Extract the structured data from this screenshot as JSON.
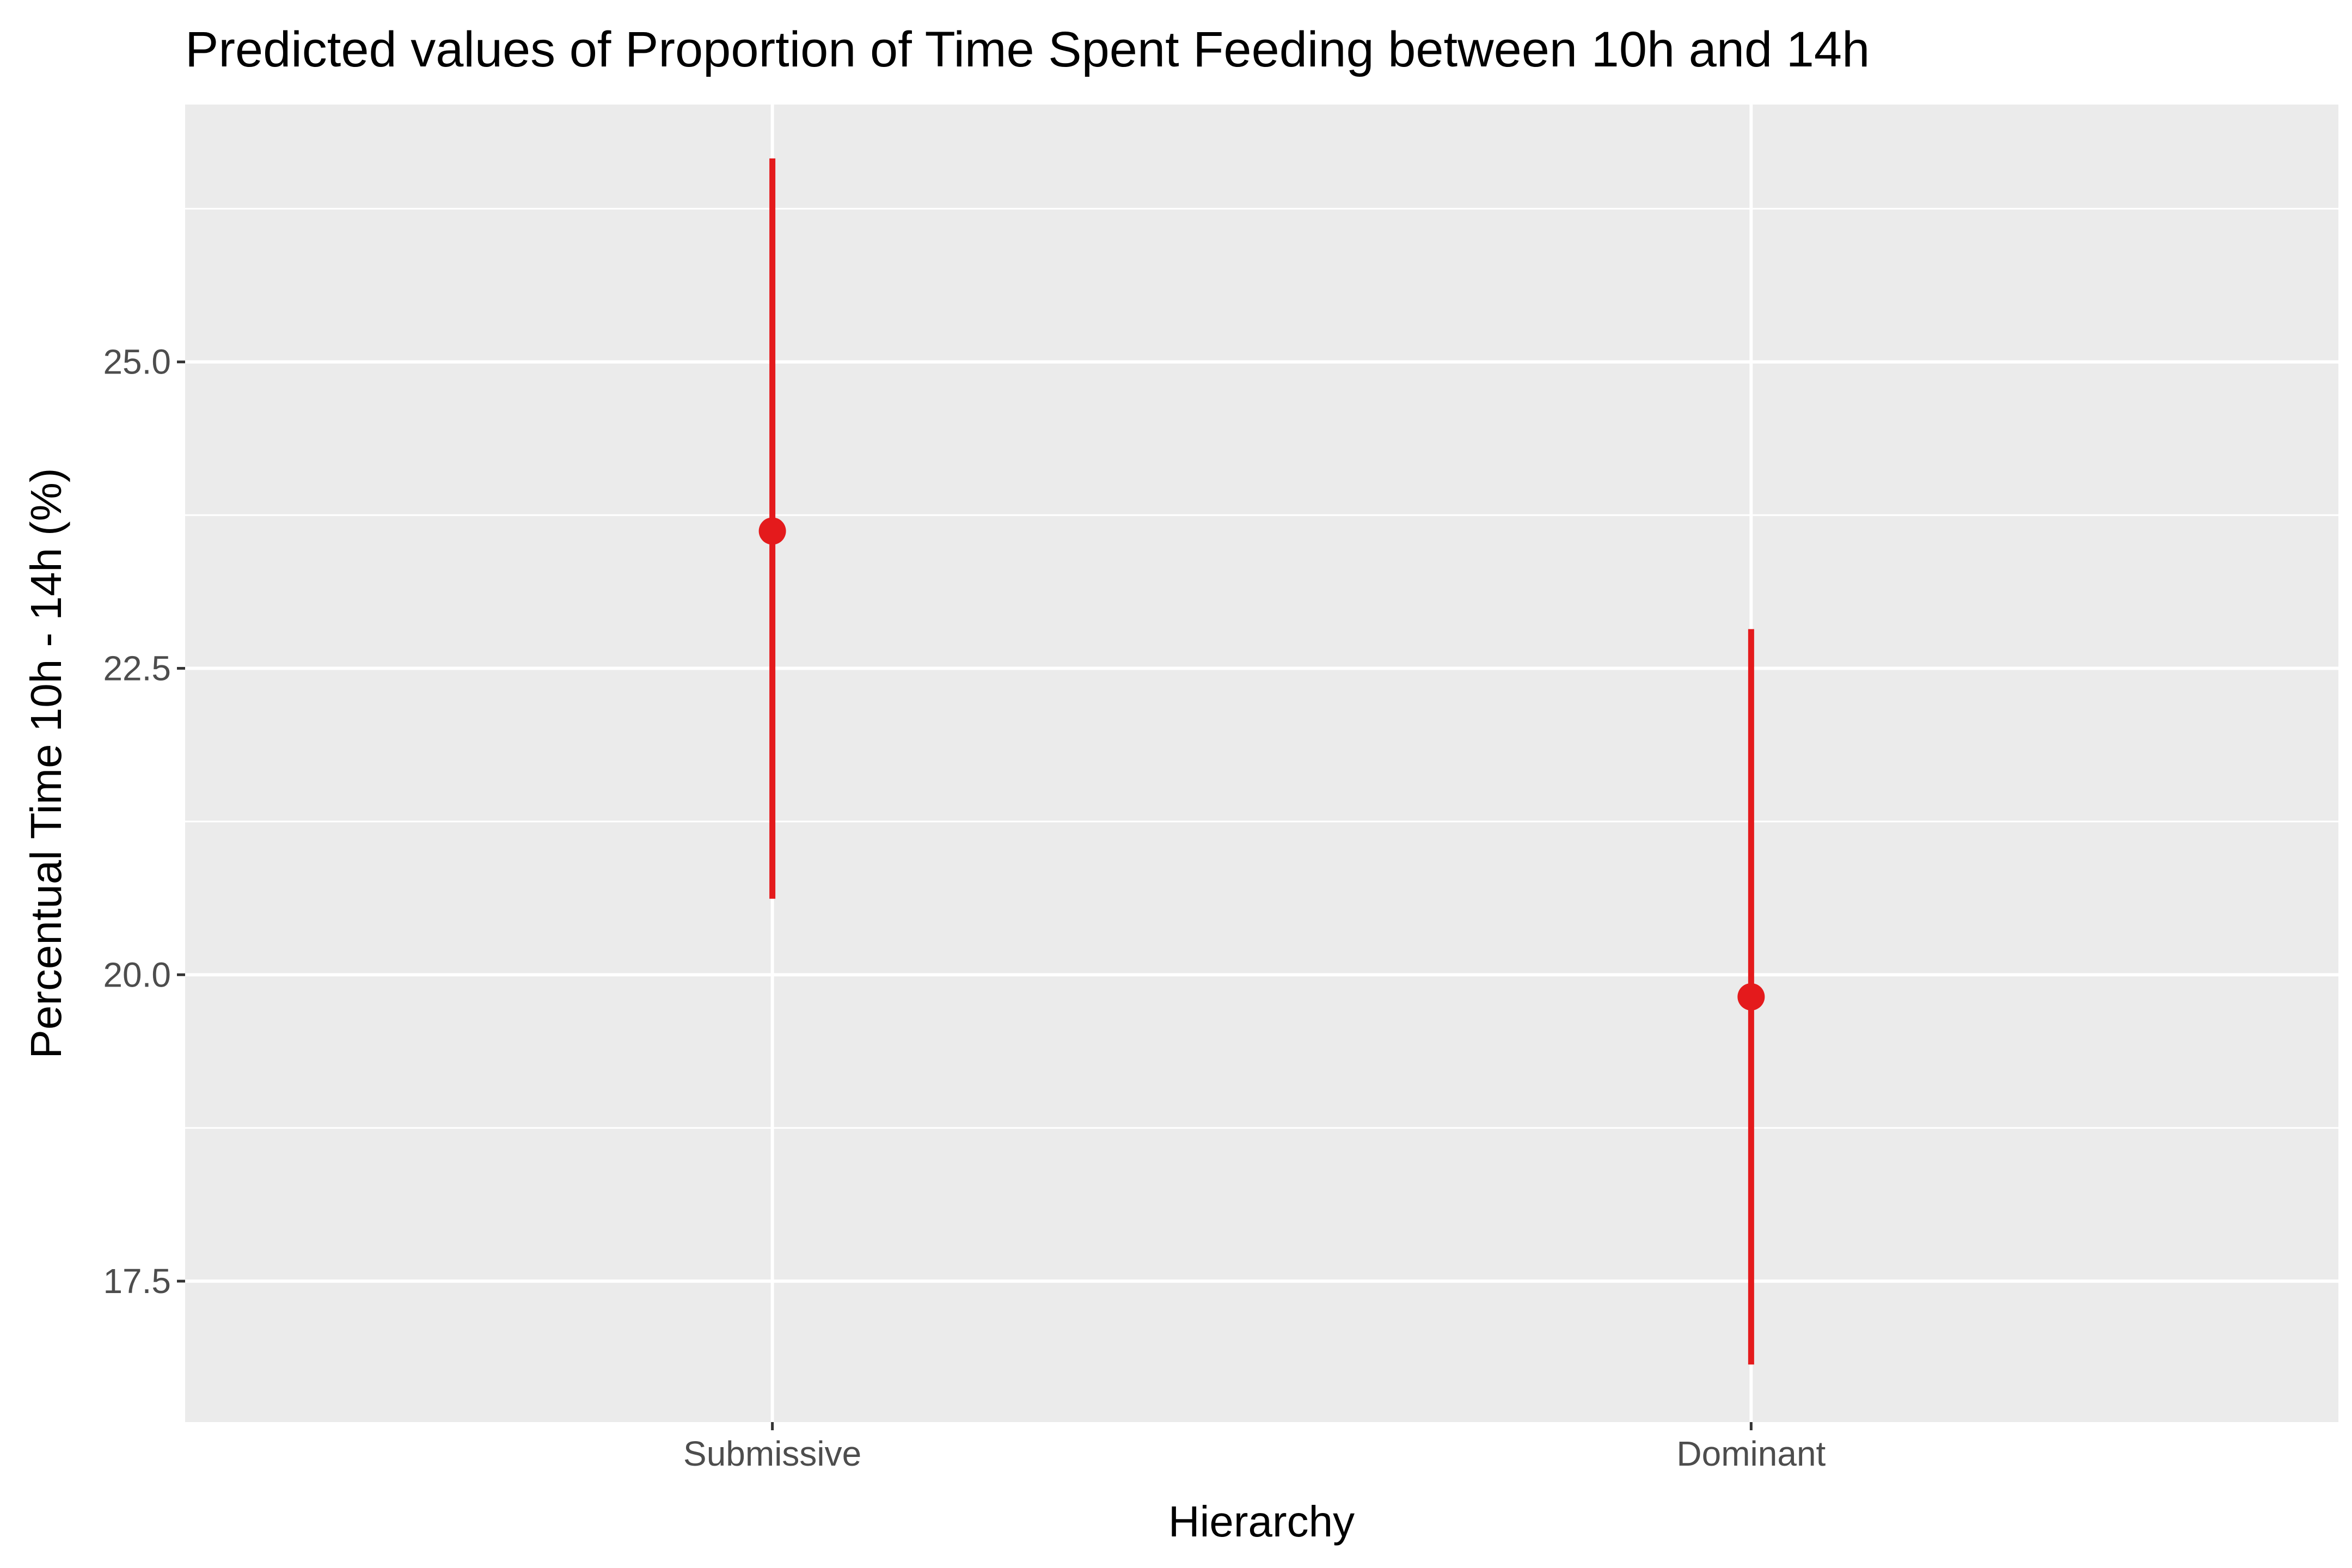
{
  "chart_data": {
    "type": "scatter",
    "title": "Predicted values of Proportion of Time Spent Feeding between 10h and 14h",
    "xlabel": "Hierarchy",
    "ylabel": "Percentual Time 10h - 14h (%)",
    "categories": [
      "Submissive",
      "Dominant"
    ],
    "series": [
      {
        "values": [
          23.62,
          19.82
        ],
        "ci_low": [
          20.62,
          16.82
        ],
        "ci_high": [
          26.66,
          22.82
        ]
      }
    ],
    "ylim": [
      16.35,
      27.1
    ],
    "y_ticks": [
      17.5,
      20.0,
      22.5,
      25.0
    ],
    "y_tick_labels": [
      "17.5",
      "20.0",
      "22.5",
      "25.0"
    ],
    "y_minor_ticks": [
      18.75,
      21.25,
      23.75,
      26.25
    ],
    "grid": true,
    "legend": "none",
    "colors": {
      "panel": "#ebebeb",
      "grid": "#ffffff",
      "mark": "#e41a1c",
      "tick_text": "#4d4d4d",
      "tick": "#333333"
    }
  }
}
